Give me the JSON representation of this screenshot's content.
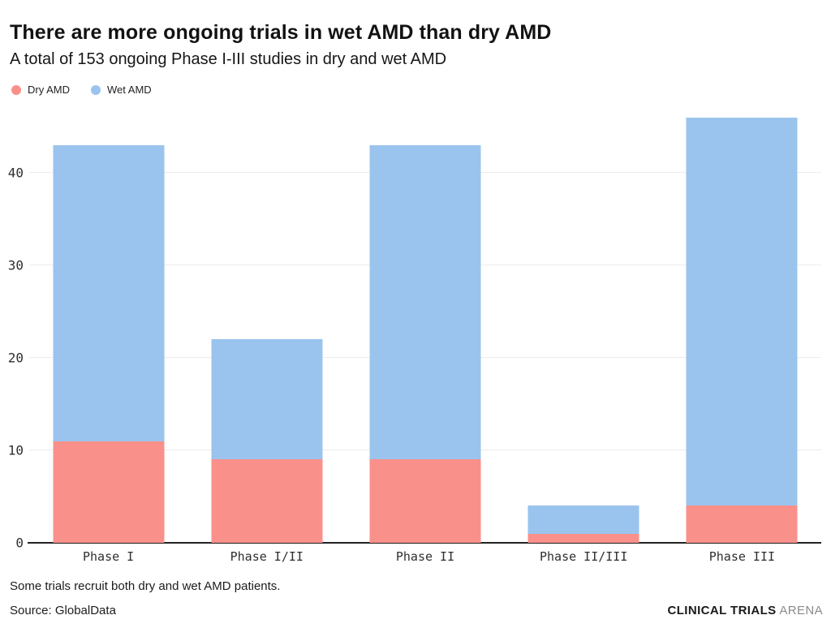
{
  "header": {
    "title": "There are more ongoing trials in wet AMD than dry AMD",
    "subtitle": "A total of 153 ongoing Phase I-III studies in dry and wet AMD"
  },
  "legend": [
    {
      "label": "Dry AMD",
      "color": "#FA908A"
    },
    {
      "label": "Wet AMD",
      "color": "#9AC4EE"
    }
  ],
  "chart_data": {
    "type": "bar",
    "stacked": true,
    "title": "There are more ongoing trials in wet AMD than dry AMD",
    "subtitle": "A total of 153 ongoing Phase I-III studies in dry and wet AMD",
    "categories": [
      "Phase I",
      "Phase I/II",
      "Phase II",
      "Phase II/III",
      "Phase III"
    ],
    "series": [
      {
        "name": "Dry AMD",
        "color": "#FA908A",
        "values": [
          11,
          9,
          9,
          1,
          4
        ]
      },
      {
        "name": "Wet AMD",
        "color": "#9AC4EE",
        "values": [
          32,
          13,
          34,
          3,
          42
        ]
      }
    ],
    "totals": [
      43,
      22,
      43,
      4,
      46
    ],
    "xlabel": "",
    "ylabel": "",
    "ylim": [
      0,
      46.4
    ],
    "yticks": [
      0,
      10,
      20,
      30,
      40
    ],
    "grid": true,
    "legend_position": "top-left",
    "colors": {
      "gridline": "#ececec",
      "axis_line": "#222222"
    }
  },
  "footer": {
    "note": "Some trials recruit both dry and wet AMD patients.",
    "source": "Source: GlobalData",
    "brand_bold": "CLINICAL TRIALS",
    "brand_light": " ARENA"
  }
}
